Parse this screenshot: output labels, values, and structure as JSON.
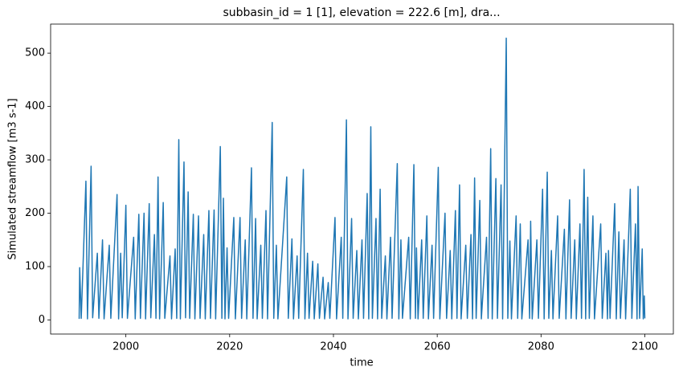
{
  "chart_data": {
    "type": "line",
    "title": "subbasin_id = 1 [1], elevation = 222.6 [m], dra...",
    "xlabel": "time",
    "ylabel": "Simulated streamflow [m3 s-1]",
    "color": "#1f77b4",
    "x": [
      1991.0,
      1991.1,
      1991.4,
      1992.3,
      1992.6,
      1993.3,
      1993.6,
      1994.5,
      1994.8,
      1995.5,
      1995.8,
      1996.8,
      1997.1,
      1998.3,
      1998.6,
      1999.0,
      1999.3,
      2000.0,
      2000.3,
      2001.5,
      2001.8,
      2002.5,
      2002.8,
      2003.5,
      2003.8,
      2004.5,
      2004.8,
      2005.5,
      2005.8,
      2006.2,
      2006.5,
      2007.2,
      2007.5,
      2008.5,
      2008.8,
      2009.5,
      2009.8,
      2010.2,
      2010.5,
      2011.2,
      2011.5,
      2012.0,
      2012.3,
      2013.0,
      2013.3,
      2014.0,
      2014.3,
      2015.0,
      2015.3,
      2016.0,
      2016.3,
      2017.0,
      2017.3,
      2018.2,
      2018.5,
      2018.8,
      2019.1,
      2019.5,
      2019.8,
      2020.8,
      2021.1,
      2022.0,
      2022.3,
      2023.0,
      2023.3,
      2024.2,
      2024.5,
      2025.0,
      2025.3,
      2026.0,
      2026.3,
      2027.0,
      2027.3,
      2028.2,
      2028.5,
      2029.0,
      2029.3,
      2031.0,
      2031.3,
      2032.0,
      2032.3,
      2033.0,
      2033.3,
      2034.2,
      2034.5,
      2035.0,
      2035.3,
      2036.0,
      2036.3,
      2037.0,
      2037.3,
      2038.0,
      2038.3,
      2039.0,
      2039.3,
      2040.3,
      2040.6,
      2041.5,
      2041.8,
      2042.5,
      2042.8,
      2043.5,
      2043.8,
      2044.5,
      2044.8,
      2045.5,
      2045.8,
      2046.5,
      2046.8,
      2047.2,
      2047.5,
      2048.2,
      2048.5,
      2049.0,
      2049.3,
      2050.0,
      2050.3,
      2051.0,
      2051.3,
      2052.3,
      2052.6,
      2053.0,
      2053.3,
      2054.5,
      2054.8,
      2055.5,
      2055.8,
      2056.0,
      2056.3,
      2057.0,
      2057.3,
      2058.0,
      2058.3,
      2059.0,
      2059.3,
      2060.2,
      2060.5,
      2061.5,
      2061.8,
      2062.5,
      2062.8,
      2063.5,
      2063.8,
      2064.3,
      2064.6,
      2065.5,
      2065.8,
      2066.5,
      2066.8,
      2067.2,
      2067.5,
      2068.2,
      2068.5,
      2069.5,
      2069.8,
      2070.3,
      2070.6,
      2071.3,
      2071.6,
      2072.3,
      2072.6,
      2073.3,
      2073.6,
      2074.0,
      2074.3,
      2075.2,
      2075.5,
      2076.0,
      2076.3,
      2077.5,
      2077.8,
      2078.0,
      2078.3,
      2079.2,
      2079.5,
      2080.3,
      2080.6,
      2081.2,
      2081.5,
      2082.0,
      2082.3,
      2083.2,
      2083.5,
      2084.5,
      2084.8,
      2085.5,
      2085.8,
      2086.5,
      2086.8,
      2087.5,
      2087.8,
      2088.3,
      2088.6,
      2089.0,
      2089.3,
      2090.0,
      2090.3,
      2091.5,
      2091.8,
      2092.5,
      2092.8,
      2093.0,
      2093.3,
      2094.2,
      2094.5,
      2095.0,
      2095.3,
      2096.0,
      2096.3,
      2097.2,
      2097.5,
      2098.2,
      2098.5,
      2098.7,
      2099.0,
      2099.5,
      2099.7,
      2099.9,
      2100.0
    ],
    "values": [
      2,
      98,
      3,
      260,
      2,
      288,
      4,
      125,
      3,
      150,
      2,
      140,
      3,
      235,
      2,
      125,
      4,
      215,
      3,
      155,
      2,
      198,
      3,
      200,
      2,
      218,
      4,
      160,
      3,
      268,
      2,
      220,
      3,
      120,
      2,
      133,
      3,
      338,
      2,
      296,
      4,
      240,
      3,
      198,
      2,
      195,
      3,
      160,
      2,
      205,
      3,
      206,
      2,
      325,
      3,
      228,
      2,
      135,
      3,
      192,
      2,
      192,
      3,
      150,
      2,
      285,
      3,
      190,
      2,
      140,
      3,
      205,
      2,
      370,
      3,
      140,
      2,
      268,
      3,
      152,
      2,
      120,
      3,
      282,
      2,
      125,
      3,
      110,
      2,
      105,
      3,
      80,
      2,
      70,
      3,
      192,
      2,
      155,
      3,
      375,
      2,
      190,
      3,
      130,
      2,
      150,
      3,
      237,
      2,
      362,
      3,
      190,
      2,
      245,
      3,
      120,
      2,
      155,
      3,
      293,
      2,
      150,
      3,
      155,
      2,
      291,
      3,
      135,
      2,
      150,
      3,
      195,
      2,
      140,
      3,
      286,
      2,
      200,
      3,
      130,
      2,
      205,
      3,
      253,
      2,
      140,
      3,
      160,
      2,
      266,
      3,
      224,
      2,
      155,
      3,
      321,
      2,
      265,
      3,
      253,
      2,
      528,
      3,
      148,
      2,
      195,
      3,
      180,
      2,
      150,
      3,
      185,
      2,
      150,
      3,
      245,
      2,
      277,
      3,
      130,
      2,
      195,
      3,
      170,
      2,
      225,
      3,
      150,
      2,
      180,
      3,
      282,
      2,
      230,
      3,
      195,
      2,
      180,
      3,
      125,
      2,
      130,
      3,
      218,
      2,
      165,
      3,
      150,
      2,
      245,
      3,
      180,
      2,
      250,
      3,
      133,
      2,
      45,
      3
    ],
    "xlim": [
      1985.5,
      2105.5
    ],
    "ylim": [
      -26.4,
      554.4
    ],
    "xticks": [
      2000,
      2020,
      2040,
      2060,
      2080,
      2100
    ],
    "yticks": [
      0,
      100,
      200,
      300,
      400,
      500
    ],
    "grid": false
  }
}
